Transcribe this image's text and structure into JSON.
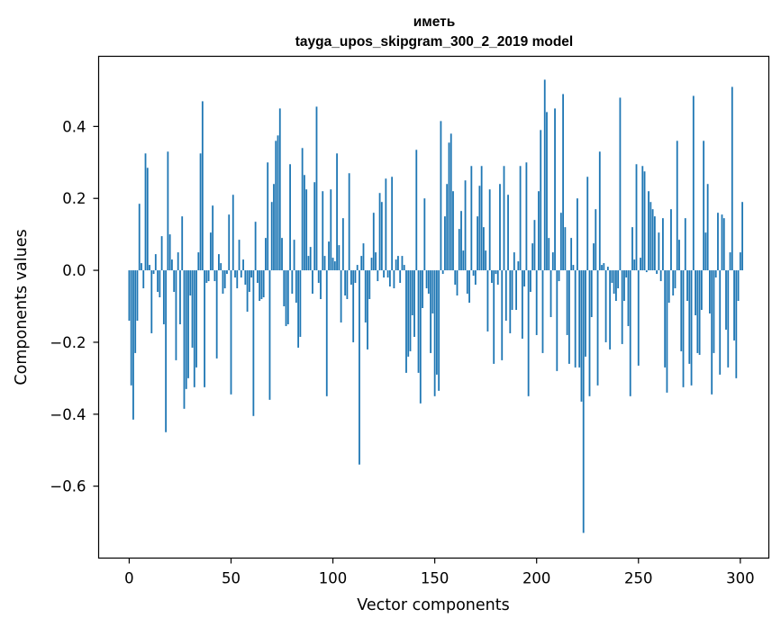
{
  "chart_data": {
    "type": "bar",
    "title": "иметь",
    "subtitle": "tayga_upos_skipgram_300_2_2019 model",
    "xlabel": "Vector components",
    "ylabel": "Components values",
    "xlim": [
      -15,
      314
    ],
    "ylim": [
      -0.8,
      0.595
    ],
    "xticks": [
      0,
      50,
      100,
      150,
      200,
      250,
      300
    ],
    "xtick_labels": [
      "0",
      "50",
      "100",
      "150",
      "200",
      "250",
      "300"
    ],
    "yticks": [
      0.4,
      0.2,
      0.0,
      -0.2,
      -0.4,
      -0.6
    ],
    "ytick_labels": [
      "0.4",
      "0.2",
      "0.0",
      "−0.2",
      "−0.4",
      "−0.6"
    ],
    "bar_color": "#1f77b4",
    "grid": false,
    "values": [
      -0.14,
      -0.32,
      -0.415,
      -0.23,
      -0.14,
      0.185,
      0.02,
      -0.05,
      0.325,
      0.285,
      0.015,
      -0.175,
      -0.01,
      0.045,
      -0.06,
      -0.075,
      0.095,
      -0.15,
      -0.45,
      0.33,
      0.1,
      0.03,
      -0.06,
      -0.25,
      0.05,
      -0.15,
      0.15,
      -0.385,
      -0.33,
      -0.3,
      -0.07,
      -0.215,
      -0.325,
      -0.27,
      0.05,
      0.325,
      0.47,
      -0.325,
      -0.035,
      -0.03,
      0.105,
      0.18,
      -0.03,
      -0.245,
      0.045,
      0.02,
      -0.065,
      -0.05,
      -0.01,
      0.155,
      -0.345,
      0.21,
      -0.02,
      -0.05,
      0.085,
      -0.02,
      0.03,
      -0.04,
      -0.115,
      -0.06,
      -0.02,
      -0.405,
      0.135,
      -0.035,
      -0.085,
      -0.08,
      -0.075,
      0.09,
      0.3,
      -0.36,
      0.19,
      0.24,
      0.36,
      0.375,
      0.45,
      0.09,
      -0.1,
      -0.155,
      -0.15,
      0.295,
      -0.065,
      0.085,
      -0.09,
      -0.215,
      -0.185,
      0.34,
      0.265,
      0.225,
      0.04,
      0.065,
      -0.065,
      0.245,
      0.455,
      -0.035,
      -0.08,
      0.22,
      0.04,
      -0.35,
      0.08,
      0.225,
      0.035,
      0.025,
      0.325,
      0.07,
      -0.145,
      0.145,
      -0.07,
      -0.08,
      0.27,
      -0.04,
      -0.2,
      -0.035,
      0.015,
      -0.54,
      0.04,
      0.075,
      -0.145,
      -0.22,
      -0.08,
      0.035,
      0.16,
      0.05,
      -0.03,
      0.215,
      0.19,
      -0.02,
      0.255,
      -0.02,
      -0.045,
      0.26,
      -0.05,
      0.03,
      0.04,
      -0.035,
      0.04,
      0.015,
      -0.285,
      -0.24,
      -0.225,
      -0.125,
      -0.185,
      0.335,
      -0.285,
      -0.37,
      -0.105,
      0.2,
      -0.05,
      -0.065,
      -0.23,
      -0.12,
      -0.35,
      -0.29,
      -0.335,
      0.415,
      -0.01,
      0.15,
      0.24,
      0.355,
      0.38,
      0.22,
      -0.04,
      -0.07,
      0.115,
      0.165,
      0.055,
      0.25,
      -0.065,
      -0.09,
      0.29,
      -0.015,
      -0.04,
      0.15,
      0.235,
      0.29,
      0.12,
      0.055,
      -0.17,
      0.225,
      -0.035,
      -0.26,
      -0.01,
      -0.04,
      0.24,
      -0.25,
      0.29,
      -0.14,
      0.21,
      -0.175,
      -0.11,
      0.05,
      -0.11,
      0.025,
      0.29,
      -0.19,
      -0.045,
      0.3,
      -0.35,
      -0.06,
      0.075,
      0.14,
      -0.18,
      0.22,
      0.39,
      -0.23,
      0.53,
      0.44,
      0.09,
      -0.13,
      0.05,
      0.45,
      -0.28,
      -0.03,
      0.16,
      0.49,
      0.12,
      -0.18,
      -0.26,
      0.09,
      0.015,
      -0.27,
      0.2,
      -0.27,
      -0.365,
      -0.73,
      -0.24,
      0.26,
      -0.35,
      -0.13,
      0.075,
      0.17,
      -0.32,
      0.33,
      0.015,
      0.02,
      -0.2,
      0.01,
      -0.22,
      -0.035,
      -0.065,
      -0.085,
      -0.05,
      0.48,
      -0.205,
      -0.085,
      -0.02,
      -0.155,
      -0.35,
      0.12,
      0.03,
      0.295,
      -0.265,
      0.035,
      0.29,
      0.275,
      -0.005,
      0.22,
      0.19,
      0.17,
      0.15,
      -0.01,
      0.105,
      -0.03,
      0.145,
      -0.27,
      -0.34,
      -0.09,
      0.17,
      -0.07,
      -0.05,
      0.36,
      0.085,
      -0.225,
      -0.325,
      0.145,
      -0.085,
      -0.26,
      -0.32,
      0.485,
      -0.125,
      -0.23,
      -0.235,
      -0.11,
      0.36,
      0.105,
      0.24,
      -0.12,
      -0.345,
      -0.23,
      -0.02,
      0.16,
      -0.29,
      0.155,
      0.145,
      -0.165,
      -0.27,
      0.05,
      0.51,
      -0.195,
      -0.3,
      -0.085,
      0.05,
      0.19
    ]
  }
}
